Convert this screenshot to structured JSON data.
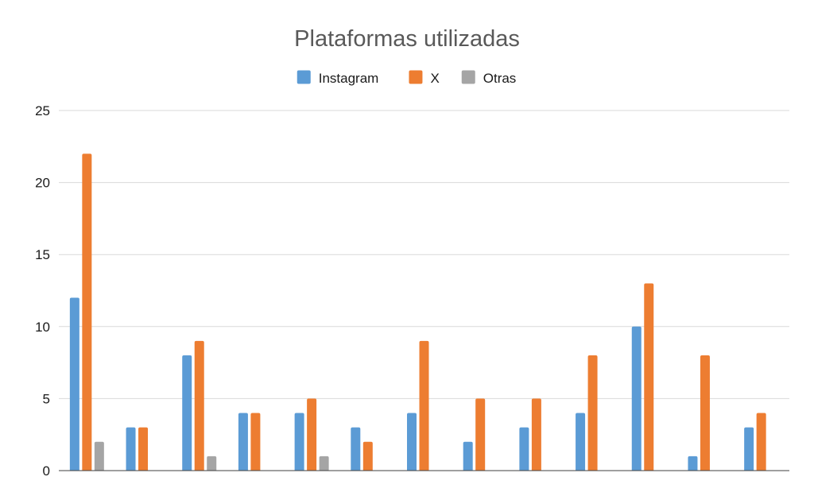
{
  "chart_data": {
    "type": "bar",
    "title": "Plataformas utilizadas",
    "xlabel": "",
    "ylabel": "",
    "categories": [
      "",
      "",
      "",
      "",
      "",
      "",
      "",
      "",
      "",
      "",
      "",
      "",
      ""
    ],
    "ylim": [
      0,
      25
    ],
    "yticks": [
      0,
      5,
      10,
      15,
      20,
      25
    ],
    "grid": true,
    "legend_position": "top",
    "series": [
      {
        "name": "Instagram",
        "color": "#5b9bd5",
        "values": [
          12,
          3,
          8,
          4,
          4,
          3,
          4,
          2,
          3,
          4,
          10,
          1,
          3
        ]
      },
      {
        "name": "X",
        "color": "#ed7d31",
        "values": [
          22,
          3,
          9,
          4,
          5,
          2,
          9,
          5,
          5,
          8,
          13,
          8,
          4
        ]
      },
      {
        "name": "Otras",
        "color": "#a5a5a5",
        "values": [
          2,
          0,
          1,
          0,
          1,
          0,
          0,
          0,
          0,
          0,
          0,
          0,
          0
        ]
      }
    ]
  }
}
